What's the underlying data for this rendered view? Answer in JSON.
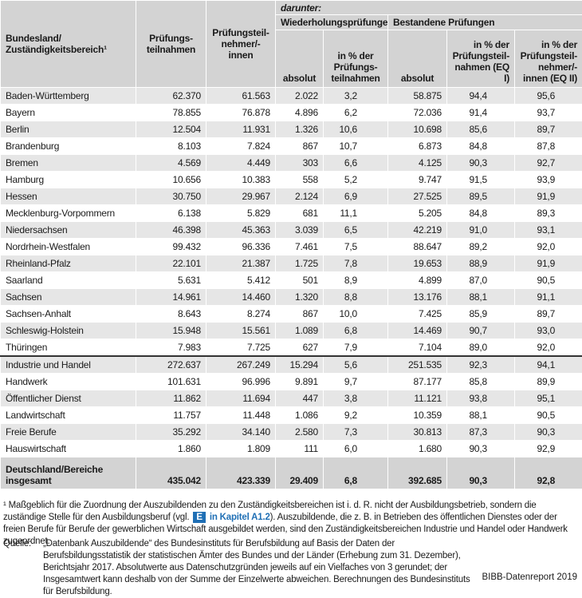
{
  "table": {
    "header": {
      "region": "Bundesland/ Zuständigkeitsbereich¹",
      "participations": "Prüfungs-teilnahmen",
      "participants": "Prüfungsteil-nehmer/-innen",
      "of_which": "darunter:",
      "repeat": "Wiederholungsprüfungen",
      "passed": "Bestandene Prüfungen",
      "repeat_abs": "absolut",
      "repeat_pct": "in % der Prüfungs-teilnahmen",
      "passed_abs": "absolut",
      "passed_pct1": "in % der Prüfungsteil-nahmen (EQ I)",
      "passed_pct2": "in % der Prüfungsteil-nehmer/-innen (EQ II)"
    },
    "states": [
      [
        "Baden-Württemberg",
        "62.370",
        "61.563",
        "2.022",
        "3,2",
        "58.875",
        "94,4",
        "95,6"
      ],
      [
        "Bayern",
        "78.855",
        "76.878",
        "4.896",
        "6,2",
        "72.036",
        "91,4",
        "93,7"
      ],
      [
        "Berlin",
        "12.504",
        "11.931",
        "1.326",
        "10,6",
        "10.698",
        "85,6",
        "89,7"
      ],
      [
        "Brandenburg",
        "8.103",
        "7.824",
        "867",
        "10,7",
        "6.873",
        "84,8",
        "87,8"
      ],
      [
        "Bremen",
        "4.569",
        "4.449",
        "303",
        "6,6",
        "4.125",
        "90,3",
        "92,7"
      ],
      [
        "Hamburg",
        "10.656",
        "10.383",
        "558",
        "5,2",
        "9.747",
        "91,5",
        "93,9"
      ],
      [
        "Hessen",
        "30.750",
        "29.967",
        "2.124",
        "6,9",
        "27.525",
        "89,5",
        "91,9"
      ],
      [
        "Mecklenburg-Vorpommern",
        "6.138",
        "5.829",
        "681",
        "11,1",
        "5.205",
        "84,8",
        "89,3"
      ],
      [
        "Niedersachsen",
        "46.398",
        "45.363",
        "3.039",
        "6,5",
        "42.219",
        "91,0",
        "93,1"
      ],
      [
        "Nordrhein-Westfalen",
        "99.432",
        "96.336",
        "7.461",
        "7,5",
        "88.647",
        "89,2",
        "92,0"
      ],
      [
        "Rheinland-Pfalz",
        "22.101",
        "21.387",
        "1.725",
        "7,8",
        "19.653",
        "88,9",
        "91,9"
      ],
      [
        "Saarland",
        "5.631",
        "5.412",
        "501",
        "8,9",
        "4.899",
        "87,0",
        "90,5"
      ],
      [
        "Sachsen",
        "14.961",
        "14.460",
        "1.320",
        "8,8",
        "13.176",
        "88,1",
        "91,1"
      ],
      [
        "Sachsen-Anhalt",
        "8.643",
        "8.274",
        "867",
        "10,0",
        "7.425",
        "85,9",
        "89,7"
      ],
      [
        "Schleswig-Holstein",
        "15.948",
        "15.561",
        "1.089",
        "6,8",
        "14.469",
        "90,7",
        "93,0"
      ],
      [
        "Thüringen",
        "7.983",
        "7.725",
        "627",
        "7,9",
        "7.104",
        "89,0",
        "92,0"
      ]
    ],
    "sectors": [
      [
        "Industrie und Handel",
        "272.637",
        "267.249",
        "15.294",
        "5,6",
        "251.535",
        "92,3",
        "94,1"
      ],
      [
        "Handwerk",
        "101.631",
        "96.996",
        "9.891",
        "9,7",
        "87.177",
        "85,8",
        "89,9"
      ],
      [
        "Öffentlicher Dienst",
        "11.862",
        "11.694",
        "447",
        "3,8",
        "11.121",
        "93,8",
        "95,1"
      ],
      [
        "Landwirtschaft",
        "11.757",
        "11.448",
        "1.086",
        "9,2",
        "10.359",
        "88,1",
        "90,5"
      ],
      [
        "Freie Berufe",
        "35.292",
        "34.140",
        "2.580",
        "7,3",
        "30.813",
        "87,3",
        "90,3"
      ],
      [
        "Hauswirtschaft",
        "1.860",
        "1.809",
        "111",
        "6,0",
        "1.680",
        "90,3",
        "92,9"
      ]
    ],
    "total": [
      "Deutschland/Bereiche insgesamt",
      "435.042",
      "423.339",
      "29.409",
      "6,8",
      "392.685",
      "90,3",
      "92,8"
    ]
  },
  "footnote": {
    "before": "¹ Maßgeblich für die Zuordnung der Auszubildenden zu den Zuständigkeitsbereichen ist i. d. R. nicht der Ausbildungsbetrieb, sondern die zuständige Stelle für den Ausbildungsberuf (vgl.",
    "icon": "E",
    "link": "in Kapitel A1.2",
    "after": "). Auszubildende, die z. B. in Betrieben des öffentlichen Dienstes oder der freien Berufe für Berufe der gewerblichen Wirtschaft ausgebildet werden, sind den Zuständigkeitsbereichen Industrie und Handel oder Handwerk zugeordnet."
  },
  "source": {
    "label": "Quelle:",
    "text": "„Datenbank Auszubildende“ des Bundesinstituts für Berufsbildung auf Basis der Daten der Berufsbildungsstatistik der statistischen Ämter des Bundes und der Länder (Erhebung zum 31. Dezember), Berichtsjahr 2017. Absolutwerte aus Datenschutzgründen jeweils auf ein Vielfaches von 3 gerundet; der Insgesamtwert kann deshalb von der Summe der Einzelwerte abweichen. Berechnungen des Bundesinstituts für Berufsbildung."
  },
  "brand": "BIBB-Datenreport 2019"
}
